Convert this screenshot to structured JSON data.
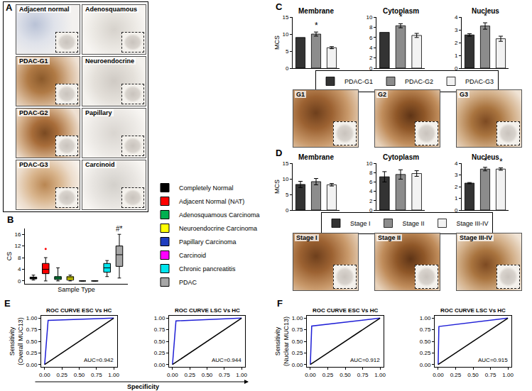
{
  "panel_labels": [
    "A",
    "B",
    "C",
    "D",
    "E",
    "F"
  ],
  "image_panels": [
    {
      "panel": "A",
      "images": [
        "Adjacent normal",
        "Adenosquamous",
        "PDAC-G1",
        "Neuroendocrine",
        "PDAC-G2",
        "Papillary",
        "PDAC-G3",
        "Carcinoid"
      ]
    },
    {
      "panel": "C",
      "images": [
        "G1",
        "G2",
        "G3"
      ]
    },
    {
      "panel": "D",
      "images": [
        "Stage I",
        "Stage II",
        "Stage III-IV"
      ]
    }
  ],
  "chart_data": [
    {
      "panel": "B",
      "type": "box",
      "x_label": "Sample Type",
      "y_label": "CS",
      "ylim": [
        -1,
        18
      ],
      "yticks": [
        0,
        4,
        8,
        12,
        16
      ],
      "tick_labels": "y",
      "legend": "right",
      "series": [
        {
          "name": "Completely Normal",
          "color": "#000000",
          "min": 0.3,
          "q1": 0.7,
          "median": 1,
          "q3": 1.3,
          "max": 2
        },
        {
          "name": "Adjacent Normal (NAT)",
          "color": "#ff0000",
          "min": 0,
          "q1": 2.5,
          "median": 4,
          "q3": 6,
          "max": 8,
          "outliers": [
            11
          ]
        },
        {
          "name": "Adenosquamous Carcinoma",
          "color": "#00b050",
          "min": 0,
          "q1": 0.5,
          "median": 1,
          "q3": 1.5,
          "max": 4.5
        },
        {
          "name": "Neuroendocrine Carcinoma",
          "color": "#ffff00",
          "min": 0,
          "q1": 0.3,
          "median": 1,
          "q3": 1.5,
          "max": 2
        },
        {
          "name": "Papillary Carcinoma",
          "color": "#1f3dbf",
          "min": 0,
          "q1": 0,
          "median": 0,
          "q3": 0,
          "max": 0
        },
        {
          "name": "Carcinoid",
          "color": "#ff00ff",
          "min": 0,
          "q1": 0,
          "median": 0,
          "q3": 0,
          "max": 0
        },
        {
          "name": "Chronic pancreatitis",
          "color": "#00e5ee",
          "min": 1.5,
          "q1": 3,
          "median": 4.5,
          "q3": 6,
          "max": 7
        },
        {
          "name": "PDAC",
          "color": "#a6a6a6",
          "min": 1,
          "q1": 5,
          "median": 9,
          "q3": 12,
          "max": 16
        }
      ],
      "annotations": [
        {
          "category_index": 7,
          "text": "#*"
        }
      ]
    },
    {
      "panel": "C",
      "type": "bar",
      "title": "Membrane",
      "y_label": "MCS",
      "legend": "bottom",
      "categories": [
        "PDAC-G1",
        "PDAC-G2",
        "PDAC-G3"
      ],
      "values": [
        9,
        10,
        6
      ],
      "errors": [
        null,
        0.6,
        0.3
      ],
      "colors": [
        "#333333",
        "#8c8c8c",
        "#f2f2f2"
      ],
      "ylim": [
        0,
        15
      ],
      "yticks": [
        0,
        5,
        10,
        15
      ],
      "tick_labels": "y",
      "annotations": [
        {
          "category_index": 1,
          "text": "*"
        }
      ]
    },
    {
      "panel": "C",
      "type": "bar",
      "title": "Cytoplasm",
      "categories": [
        "PDAC-G1",
        "PDAC-G2",
        "PDAC-G3"
      ],
      "values": [
        7,
        8.3,
        6.4
      ],
      "errors": [
        null,
        0.4,
        0.4
      ],
      "colors": [
        "#333333",
        "#8c8c8c",
        "#f2f2f2"
      ],
      "ylim": [
        0,
        10
      ],
      "yticks": [
        0,
        2,
        4,
        6,
        8,
        10
      ],
      "tick_labels": "y",
      "annotations": [
        {
          "category_index": 1,
          "text": "*"
        }
      ]
    },
    {
      "panel": "C",
      "type": "bar",
      "title": "Nucleus",
      "categories": [
        "PDAC-G1",
        "PDAC-G2",
        "PDAC-G3"
      ],
      "values": [
        2.6,
        3.3,
        2.3
      ],
      "errors": [
        0.1,
        0.25,
        0.2
      ],
      "colors": [
        "#333333",
        "#8c8c8c",
        "#f2f2f2"
      ],
      "ylim": [
        0,
        4
      ],
      "yticks": [
        0,
        1,
        2,
        3,
        4
      ],
      "tick_labels": "y",
      "annotations": [
        {
          "category_index": 1,
          "text": "*"
        }
      ]
    },
    {
      "panel": "D",
      "type": "bar",
      "title": "Membrane",
      "y_label": "MCS",
      "legend": "bottom",
      "categories": [
        "Stage I",
        "Stage II",
        "Stage III-IV"
      ],
      "values": [
        8.2,
        9.1,
        8.1
      ],
      "errors": [
        1.0,
        1.0,
        0.4
      ],
      "colors": [
        "#333333",
        "#8c8c8c",
        "#f2f2f2"
      ],
      "ylim": [
        0,
        15
      ],
      "yticks": [
        0,
        5,
        10,
        15
      ],
      "tick_labels": "y"
    },
    {
      "panel": "D",
      "type": "bar",
      "title": "Cytoplasm",
      "categories": [
        "Stage I",
        "Stage II",
        "Stage III-IV"
      ],
      "values": [
        7.1,
        7.6,
        7.8
      ],
      "errors": [
        1.1,
        1.0,
        0.6
      ],
      "colors": [
        "#333333",
        "#8c8c8c",
        "#f2f2f2"
      ],
      "ylim": [
        0,
        10
      ],
      "yticks": [
        0,
        2,
        4,
        6,
        8,
        10
      ],
      "tick_labels": "y"
    },
    {
      "panel": "D",
      "type": "bar",
      "title": "Nucleus",
      "categories": [
        "Stage I",
        "Stage II",
        "Stage III-IV"
      ],
      "values": [
        2.3,
        3.5,
        3.5
      ],
      "errors": [
        0.05,
        0.15,
        0.1
      ],
      "colors": [
        "#333333",
        "#8c8c8c",
        "#f2f2f2"
      ],
      "ylim": [
        0,
        4
      ],
      "yticks": [
        0,
        1,
        2,
        3,
        4
      ],
      "tick_labels": "y",
      "annotations": [
        {
          "category_index": 1,
          "text": "*"
        },
        {
          "category_index": 2,
          "text": "*"
        }
      ]
    },
    {
      "panel": "E",
      "type": "line",
      "title": "ROC CURVE ESC Vs HC",
      "y_label": [
        "Sensitivity",
        "(Overall MUC13)"
      ],
      "x_label": "Specificity",
      "xlim": [
        -0.05,
        1.05
      ],
      "ylim": [
        -0.05,
        1.05
      ],
      "xticks": [
        {
          "value": 0,
          "label": "0.00"
        },
        {
          "value": 0.25,
          "label": "0.25"
        },
        {
          "value": 0.5,
          "label": "0.50"
        },
        {
          "value": 0.75,
          "label": "0.75"
        },
        {
          "value": 1,
          "label": "1.00"
        }
      ],
      "yticks": [
        {
          "value": 0,
          "label": "0.00"
        },
        {
          "value": 0.25,
          "label": "0.25"
        },
        {
          "value": 0.5,
          "label": "0.50"
        },
        {
          "value": 0.75,
          "label": "0.75"
        },
        {
          "value": 1,
          "label": "1.00"
        }
      ],
      "series": [
        {
          "color": "#1f1fd6",
          "x": [
            0,
            0.05,
            1
          ],
          "values": [
            0,
            0.95,
            1
          ]
        },
        {
          "color": "#000000",
          "x": [
            0,
            1
          ],
          "values": [
            0,
            1
          ]
        }
      ],
      "annotations": [
        {
          "text": "AUC=0.942"
        }
      ]
    },
    {
      "panel": "E",
      "type": "line",
      "title": "ROC CURVE LSC Vs HC",
      "xlim": [
        -0.05,
        1.05
      ],
      "ylim": [
        -0.05,
        1.05
      ],
      "xticks": [
        {
          "value": 0,
          "label": "0.00"
        },
        {
          "value": 0.25,
          "label": "0.25"
        },
        {
          "value": 0.5,
          "label": "0.50"
        },
        {
          "value": 0.75,
          "label": "0.75"
        },
        {
          "value": 1,
          "label": "1.00"
        }
      ],
      "yticks": [
        {
          "value": 0,
          "label": "0.00"
        },
        {
          "value": 0.25,
          "label": "0.25"
        },
        {
          "value": 0.5,
          "label": "0.50"
        },
        {
          "value": 0.75,
          "label": "0.75"
        },
        {
          "value": 1,
          "label": "1.00"
        }
      ],
      "series": [
        {
          "color": "#1f1fd6",
          "x": [
            0,
            0.05,
            1
          ],
          "values": [
            0,
            0.94,
            1
          ]
        },
        {
          "color": "#000000",
          "x": [
            0,
            1
          ],
          "values": [
            0,
            1
          ]
        }
      ],
      "annotations": [
        {
          "text": "AUC=0.944"
        }
      ]
    },
    {
      "panel": "F",
      "type": "line",
      "title": "ROC CURVE ESC Vs HC",
      "y_label": [
        "Sensitivity",
        "(Nuclear MUC13)"
      ],
      "xlim": [
        -0.05,
        1.05
      ],
      "ylim": [
        -0.05,
        1.05
      ],
      "xticks": [
        {
          "value": 0,
          "label": "0.00"
        },
        {
          "value": 0.25,
          "label": "0.25"
        },
        {
          "value": 0.5,
          "label": "0.50"
        },
        {
          "value": 0.75,
          "label": "0.75"
        },
        {
          "value": 1,
          "label": "1.00"
        }
      ],
      "yticks": [
        {
          "value": 0,
          "label": "0.00"
        },
        {
          "value": 0.25,
          "label": "0.25"
        },
        {
          "value": 0.5,
          "label": "0.50"
        },
        {
          "value": 0.75,
          "label": "0.75"
        },
        {
          "value": 1,
          "label": "1.00"
        }
      ],
      "series": [
        {
          "color": "#1f1fd6",
          "x": [
            0,
            0.02,
            1
          ],
          "values": [
            0,
            0.83,
            1
          ]
        },
        {
          "color": "#000000",
          "x": [
            0,
            1
          ],
          "values": [
            0,
            1
          ]
        }
      ],
      "annotations": [
        {
          "text": "AUC=0.912"
        }
      ]
    },
    {
      "panel": "F",
      "type": "line",
      "title": "ROC CURVE LSC Vs HC",
      "xlim": [
        -0.05,
        1.05
      ],
      "ylim": [
        -0.05,
        1.05
      ],
      "xticks": [
        {
          "value": 0,
          "label": "0.00"
        },
        {
          "value": 0.25,
          "label": "0.25"
        },
        {
          "value": 0.5,
          "label": "0.50"
        },
        {
          "value": 0.75,
          "label": "0.75"
        },
        {
          "value": 1,
          "label": "1.00"
        }
      ],
      "yticks": [
        {
          "value": 0,
          "label": "0.00"
        },
        {
          "value": 0.25,
          "label": "0.25"
        },
        {
          "value": 0.5,
          "label": "0.50"
        },
        {
          "value": 0.75,
          "label": "0.75"
        },
        {
          "value": 1,
          "label": "1.00"
        }
      ],
      "series": [
        {
          "color": "#1f1fd6",
          "x": [
            0,
            0.01,
            1
          ],
          "values": [
            0,
            0.82,
            1
          ]
        },
        {
          "color": "#000000",
          "x": [
            0,
            1
          ],
          "values": [
            0,
            1
          ]
        }
      ],
      "annotations": [
        {
          "text": "AUC=0.915"
        }
      ]
    }
  ]
}
